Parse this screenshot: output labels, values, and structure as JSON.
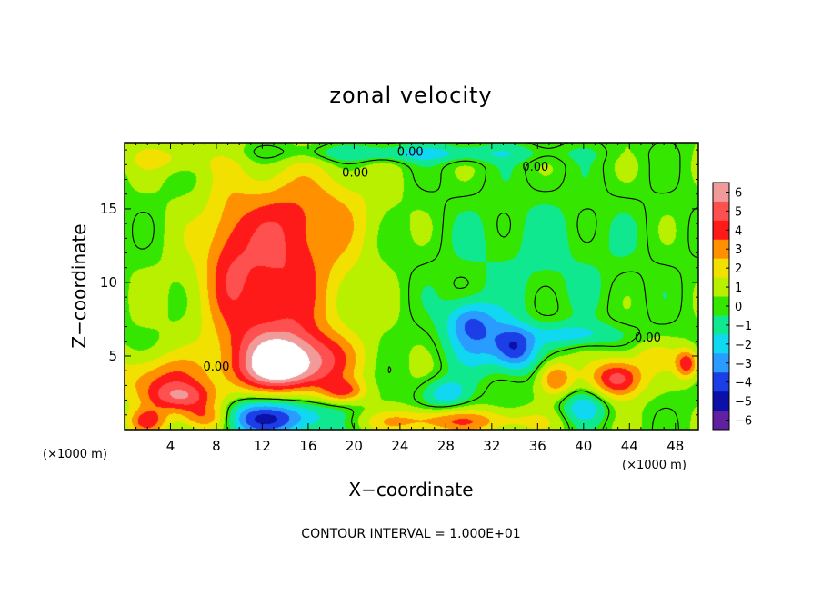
{
  "chart_data": {
    "type": "heatmap",
    "title": "zonal velocity",
    "xlabel": "X−coordinate",
    "ylabel": "Z−coordinate",
    "x_unit": "(×1000 m)",
    "y_unit": "(×1000 m)",
    "xlim": [
      0,
      50
    ],
    "ylim": [
      0,
      19.5
    ],
    "xticks": [
      4,
      8,
      12,
      16,
      20,
      24,
      28,
      32,
      36,
      40,
      44,
      48
    ],
    "xtick_labels": [
      "4",
      "8",
      "12",
      "16",
      "20",
      "24",
      "28",
      "32",
      "36",
      "40",
      "44",
      "48"
    ],
    "yticks": [
      5,
      10,
      15
    ],
    "ytick_labels": [
      "5",
      "10",
      "15"
    ],
    "colorbar": {
      "levels": [
        6,
        5,
        4,
        3,
        2,
        1,
        0,
        -1,
        -2,
        -3,
        -4,
        -5,
        -6
      ],
      "labels": [
        "6",
        "5",
        "4",
        "3",
        "2",
        "1",
        "0",
        "−1",
        "−2",
        "−3",
        "−4",
        "−5",
        "−6"
      ],
      "colors": [
        "#f09a9a",
        "#ff5050",
        "#ff1a1a",
        "#ff9000",
        "#f2e000",
        "#b8f000",
        "#34e600",
        "#10e890",
        "#10d8f0",
        "#2a9cff",
        "#1c3ee6",
        "#0a10a8",
        "#6020a0"
      ]
    },
    "contour_labels": [
      {
        "text": "0.00",
        "x": 24.9,
        "z": 18.6
      },
      {
        "text": "0.00",
        "x": 20.1,
        "z": 17.2
      },
      {
        "text": "0.00",
        "x": 35.8,
        "z": 17.6
      },
      {
        "text": "0.00",
        "x": 45.6,
        "z": 6.0
      },
      {
        "text": "0.00",
        "x": 8.0,
        "z": 4.0
      }
    ],
    "contour_interval_text": "CONTOUR INTERVAL = 1.000E+01",
    "field_features": [
      {
        "x": 13,
        "z": 10.5,
        "sx": 6,
        "sz": 5,
        "v": 4.0
      },
      {
        "x": 13,
        "z": 5.5,
        "sx": 4.5,
        "sz": 2.5,
        "v": 2.5
      },
      {
        "x": 15,
        "z": 5.2,
        "sx": 5,
        "sz": 1.5,
        "v": 3.0
      },
      {
        "x": 14,
        "z": 3.8,
        "sx": 4.5,
        "sz": 1.3,
        "v": 4.0
      },
      {
        "x": 16,
        "z": 15,
        "sx": 6,
        "sz": 3,
        "v": 2.0
      },
      {
        "x": 9,
        "z": 12,
        "sx": 2,
        "sz": 5,
        "v": 1.5
      },
      {
        "x": 3,
        "z": 3.5,
        "sx": 4,
        "sz": 1.6,
        "v": 3.0
      },
      {
        "x": 5,
        "z": 2.2,
        "sx": 3,
        "sz": 1.0,
        "v": 4.0
      },
      {
        "x": 2,
        "z": 0.6,
        "sx": 1.8,
        "sz": 0.9,
        "v": 3.5
      },
      {
        "x": 7,
        "z": 0.8,
        "sx": 2.5,
        "sz": 1.0,
        "v": 5.0
      },
      {
        "x": 12,
        "z": 0.8,
        "sx": 6,
        "sz": 1.2,
        "v": -5.0
      },
      {
        "x": 19,
        "z": 2.6,
        "sx": 2,
        "sz": 0.8,
        "v": 3.0
      },
      {
        "x": 30,
        "z": 7.5,
        "sx": 2,
        "sz": 1.4,
        "v": -2.5
      },
      {
        "x": 31,
        "z": 6,
        "sx": 3,
        "sz": 2,
        "v": -2.5
      },
      {
        "x": 34,
        "z": 5.5,
        "sx": 1.8,
        "sz": 1.5,
        "v": -4.0
      },
      {
        "x": 37.5,
        "z": 3.5,
        "sx": 1.5,
        "sz": 1.2,
        "v": 3.5
      },
      {
        "x": 43,
        "z": 3.5,
        "sx": 2.2,
        "sz": 1.3,
        "v": 5.0
      },
      {
        "x": 46,
        "z": 5,
        "sx": 2,
        "sz": 1,
        "v": 1.5
      },
      {
        "x": 28,
        "z": 2.5,
        "sx": 2,
        "sz": 1,
        "v": -2.5
      },
      {
        "x": 28,
        "z": 0.6,
        "sx": 8,
        "sz": 0.8,
        "v": 3.0
      },
      {
        "x": 40,
        "z": 1.5,
        "sx": 2,
        "sz": 1.2,
        "v": -2.5
      },
      {
        "x": 39,
        "z": 6.5,
        "sx": 4,
        "sz": 0.8,
        "v": -2.0
      },
      {
        "x": 25,
        "z": 18.8,
        "sx": 12,
        "sz": 0.6,
        "v": -2.0
      },
      {
        "x": 4,
        "z": 18.5,
        "sx": 4,
        "sz": 1,
        "v": 1.5
      },
      {
        "x": 49,
        "z": 4.5,
        "sx": 1,
        "sz": 1,
        "v": 4.0
      },
      {
        "x": 36,
        "z": 12,
        "sx": 10,
        "sz": 5,
        "v": -1.0
      }
    ]
  }
}
